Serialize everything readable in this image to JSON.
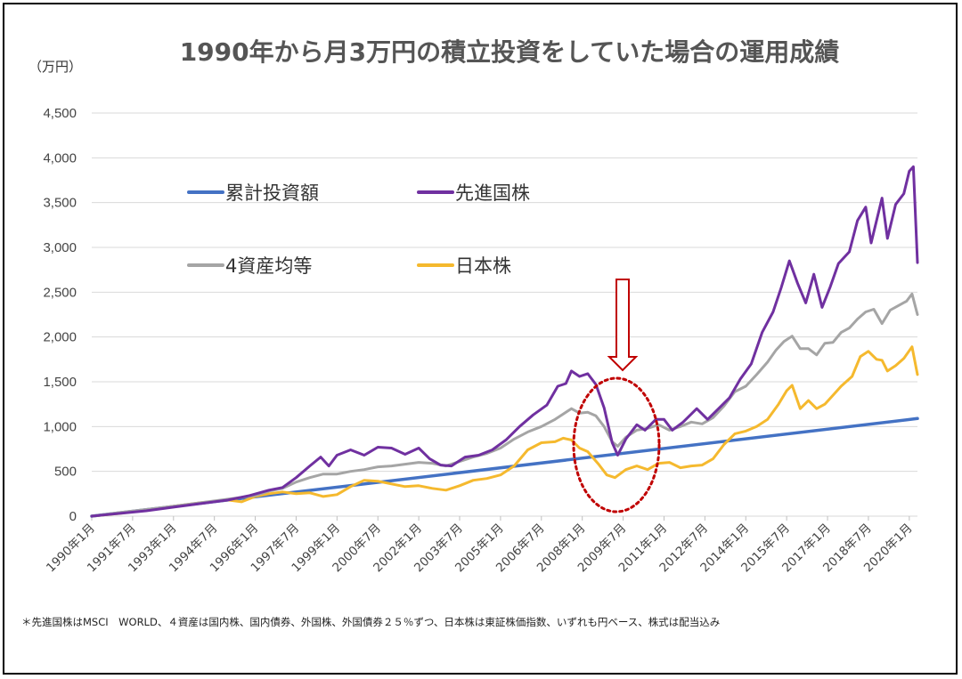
{
  "chart_data": {
    "type": "line",
    "title": "1990年から月3万円の積立投資をしていた場合の運用成績",
    "y_unit": "（万円）",
    "ylim": [
      0,
      4500
    ],
    "y_ticks": [
      "0",
      "500",
      "1,000",
      "1,500",
      "2,000",
      "2,500",
      "3,000",
      "3,500",
      "4,000",
      "4,500"
    ],
    "x_ticks": [
      "1990年1月",
      "1991年7月",
      "1993年1月",
      "1994年7月",
      "1996年1月",
      "1997年7月",
      "1999年1月",
      "2000年7月",
      "2002年1月",
      "2003年7月",
      "2005年1月",
      "2006年7月",
      "2008年1月",
      "2009年7月",
      "2011年1月",
      "2012年7月",
      "2014年1月",
      "2015年7月",
      "2017年1月",
      "2018年7月",
      "2020年1月"
    ],
    "x_range": [
      1990.0,
      2020.3
    ],
    "grid": true,
    "legend_position": "upper-left",
    "series": [
      {
        "name": "累計投資額",
        "color": "#4472C4",
        "points": [
          [
            1990.0,
            0
          ],
          [
            2020.3,
            1090
          ]
        ]
      },
      {
        "name": "先進国株",
        "color": "#7030A0",
        "points": [
          [
            1990.0,
            0
          ],
          [
            1991.0,
            30
          ],
          [
            1992.0,
            60
          ],
          [
            1993.0,
            100
          ],
          [
            1994.0,
            140
          ],
          [
            1995.0,
            180
          ],
          [
            1995.8,
            230
          ],
          [
            1996.5,
            290
          ],
          [
            1997.0,
            320
          ],
          [
            1997.5,
            430
          ],
          [
            1998.0,
            560
          ],
          [
            1998.4,
            660
          ],
          [
            1998.7,
            560
          ],
          [
            1999.0,
            680
          ],
          [
            1999.5,
            740
          ],
          [
            2000.0,
            680
          ],
          [
            2000.5,
            770
          ],
          [
            2001.0,
            760
          ],
          [
            2001.5,
            690
          ],
          [
            2002.0,
            760
          ],
          [
            2002.4,
            640
          ],
          [
            2002.8,
            570
          ],
          [
            2003.2,
            560
          ],
          [
            2003.7,
            660
          ],
          [
            2004.2,
            680
          ],
          [
            2004.7,
            740
          ],
          [
            2005.2,
            850
          ],
          [
            2005.7,
            1000
          ],
          [
            2006.2,
            1130
          ],
          [
            2006.7,
            1240
          ],
          [
            2007.1,
            1450
          ],
          [
            2007.4,
            1480
          ],
          [
            2007.6,
            1620
          ],
          [
            2007.9,
            1560
          ],
          [
            2008.2,
            1590
          ],
          [
            2008.5,
            1470
          ],
          [
            2008.8,
            1210
          ],
          [
            2009.1,
            820
          ],
          [
            2009.3,
            680
          ],
          [
            2009.6,
            860
          ],
          [
            2010.0,
            1020
          ],
          [
            2010.3,
            960
          ],
          [
            2010.7,
            1080
          ],
          [
            2011.0,
            1080
          ],
          [
            2011.3,
            960
          ],
          [
            2011.7,
            1050
          ],
          [
            2012.2,
            1200
          ],
          [
            2012.6,
            1080
          ],
          [
            2013.0,
            1200
          ],
          [
            2013.4,
            1320
          ],
          [
            2013.8,
            1530
          ],
          [
            2014.2,
            1700
          ],
          [
            2014.6,
            2050
          ],
          [
            2015.0,
            2280
          ],
          [
            2015.3,
            2550
          ],
          [
            2015.6,
            2850
          ],
          [
            2015.9,
            2600
          ],
          [
            2016.2,
            2380
          ],
          [
            2016.5,
            2700
          ],
          [
            2016.8,
            2330
          ],
          [
            2017.1,
            2560
          ],
          [
            2017.4,
            2820
          ],
          [
            2017.8,
            2950
          ],
          [
            2018.1,
            3300
          ],
          [
            2018.4,
            3450
          ],
          [
            2018.6,
            3050
          ],
          [
            2018.8,
            3300
          ],
          [
            2019.0,
            3550
          ],
          [
            2019.2,
            3100
          ],
          [
            2019.5,
            3480
          ],
          [
            2019.8,
            3600
          ],
          [
            2020.0,
            3850
          ],
          [
            2020.15,
            3900
          ],
          [
            2020.3,
            2830
          ]
        ]
      },
      {
        "name": "4資産均等",
        "color": "#A5A5A5",
        "points": [
          [
            1990.0,
            0
          ],
          [
            1991.0,
            40
          ],
          [
            1992.0,
            75
          ],
          [
            1993.0,
            110
          ],
          [
            1994.0,
            150
          ],
          [
            1995.0,
            190
          ],
          [
            1996.0,
            230
          ],
          [
            1996.5,
            280
          ],
          [
            1997.0,
            310
          ],
          [
            1997.5,
            380
          ],
          [
            1998.0,
            430
          ],
          [
            1998.5,
            470
          ],
          [
            1999.0,
            470
          ],
          [
            1999.5,
            500
          ],
          [
            2000.0,
            520
          ],
          [
            2000.5,
            550
          ],
          [
            2001.0,
            560
          ],
          [
            2001.5,
            580
          ],
          [
            2002.0,
            600
          ],
          [
            2002.5,
            590
          ],
          [
            2003.0,
            560
          ],
          [
            2003.5,
            610
          ],
          [
            2004.0,
            660
          ],
          [
            2004.5,
            700
          ],
          [
            2005.0,
            760
          ],
          [
            2005.5,
            860
          ],
          [
            2006.0,
            940
          ],
          [
            2006.5,
            1000
          ],
          [
            2007.0,
            1080
          ],
          [
            2007.3,
            1140
          ],
          [
            2007.6,
            1200
          ],
          [
            2007.9,
            1150
          ],
          [
            2008.2,
            1160
          ],
          [
            2008.5,
            1120
          ],
          [
            2008.8,
            1000
          ],
          [
            2009.1,
            830
          ],
          [
            2009.3,
            780
          ],
          [
            2009.6,
            880
          ],
          [
            2010.0,
            960
          ],
          [
            2010.4,
            980
          ],
          [
            2010.8,
            1020
          ],
          [
            2011.2,
            960
          ],
          [
            2011.6,
            1000
          ],
          [
            2012.0,
            1050
          ],
          [
            2012.4,
            1030
          ],
          [
            2012.8,
            1100
          ],
          [
            2013.2,
            1230
          ],
          [
            2013.6,
            1390
          ],
          [
            2014.0,
            1450
          ],
          [
            2014.4,
            1580
          ],
          [
            2014.8,
            1720
          ],
          [
            2015.1,
            1850
          ],
          [
            2015.4,
            1950
          ],
          [
            2015.7,
            2010
          ],
          [
            2016.0,
            1870
          ],
          [
            2016.3,
            1870
          ],
          [
            2016.6,
            1800
          ],
          [
            2016.9,
            1930
          ],
          [
            2017.2,
            1940
          ],
          [
            2017.5,
            2050
          ],
          [
            2017.8,
            2100
          ],
          [
            2018.1,
            2200
          ],
          [
            2018.4,
            2280
          ],
          [
            2018.7,
            2310
          ],
          [
            2019.0,
            2150
          ],
          [
            2019.3,
            2300
          ],
          [
            2019.6,
            2350
          ],
          [
            2019.9,
            2400
          ],
          [
            2020.1,
            2480
          ],
          [
            2020.3,
            2250
          ]
        ]
      },
      {
        "name": "日本株",
        "color": "#F5B92E",
        "points": [
          [
            1990.0,
            0
          ],
          [
            1991.0,
            30
          ],
          [
            1992.0,
            70
          ],
          [
            1993.0,
            110
          ],
          [
            1994.0,
            150
          ],
          [
            1995.0,
            180
          ],
          [
            1995.5,
            160
          ],
          [
            1996.0,
            220
          ],
          [
            1996.5,
            250
          ],
          [
            1997.0,
            270
          ],
          [
            1997.5,
            250
          ],
          [
            1998.0,
            260
          ],
          [
            1998.5,
            220
          ],
          [
            1999.0,
            240
          ],
          [
            1999.5,
            330
          ],
          [
            2000.0,
            400
          ],
          [
            2000.5,
            390
          ],
          [
            2001.0,
            360
          ],
          [
            2001.5,
            330
          ],
          [
            2002.0,
            340
          ],
          [
            2002.5,
            310
          ],
          [
            2003.0,
            290
          ],
          [
            2003.5,
            340
          ],
          [
            2004.0,
            400
          ],
          [
            2004.5,
            420
          ],
          [
            2005.0,
            460
          ],
          [
            2005.5,
            560
          ],
          [
            2006.0,
            740
          ],
          [
            2006.5,
            820
          ],
          [
            2007.0,
            830
          ],
          [
            2007.3,
            870
          ],
          [
            2007.6,
            850
          ],
          [
            2007.9,
            760
          ],
          [
            2008.2,
            720
          ],
          [
            2008.6,
            580
          ],
          [
            2008.9,
            460
          ],
          [
            2009.2,
            430
          ],
          [
            2009.6,
            520
          ],
          [
            2010.0,
            560
          ],
          [
            2010.4,
            520
          ],
          [
            2010.8,
            590
          ],
          [
            2011.2,
            600
          ],
          [
            2011.6,
            540
          ],
          [
            2012.0,
            560
          ],
          [
            2012.4,
            570
          ],
          [
            2012.8,
            640
          ],
          [
            2013.2,
            800
          ],
          [
            2013.6,
            920
          ],
          [
            2014.0,
            950
          ],
          [
            2014.4,
            1000
          ],
          [
            2014.8,
            1080
          ],
          [
            2015.2,
            1250
          ],
          [
            2015.5,
            1400
          ],
          [
            2015.7,
            1460
          ],
          [
            2016.0,
            1200
          ],
          [
            2016.3,
            1290
          ],
          [
            2016.6,
            1200
          ],
          [
            2016.9,
            1250
          ],
          [
            2017.2,
            1350
          ],
          [
            2017.5,
            1450
          ],
          [
            2017.9,
            1560
          ],
          [
            2018.2,
            1780
          ],
          [
            2018.5,
            1840
          ],
          [
            2018.8,
            1750
          ],
          [
            2019.0,
            1740
          ],
          [
            2019.2,
            1620
          ],
          [
            2019.5,
            1680
          ],
          [
            2019.8,
            1760
          ],
          [
            2020.1,
            1890
          ],
          [
            2020.3,
            1580
          ]
        ]
      }
    ],
    "annotations": {
      "circle_around": "2008年1月〜2009年7月",
      "arrow": "down"
    },
    "footnote": "＊先進国株はMSCI　WORLD、４資産は国内株、国内債券、外国株、外国債券２５％ずつ、日本株は東証株価指数、いずれも円ベース、株式は配当込み"
  }
}
